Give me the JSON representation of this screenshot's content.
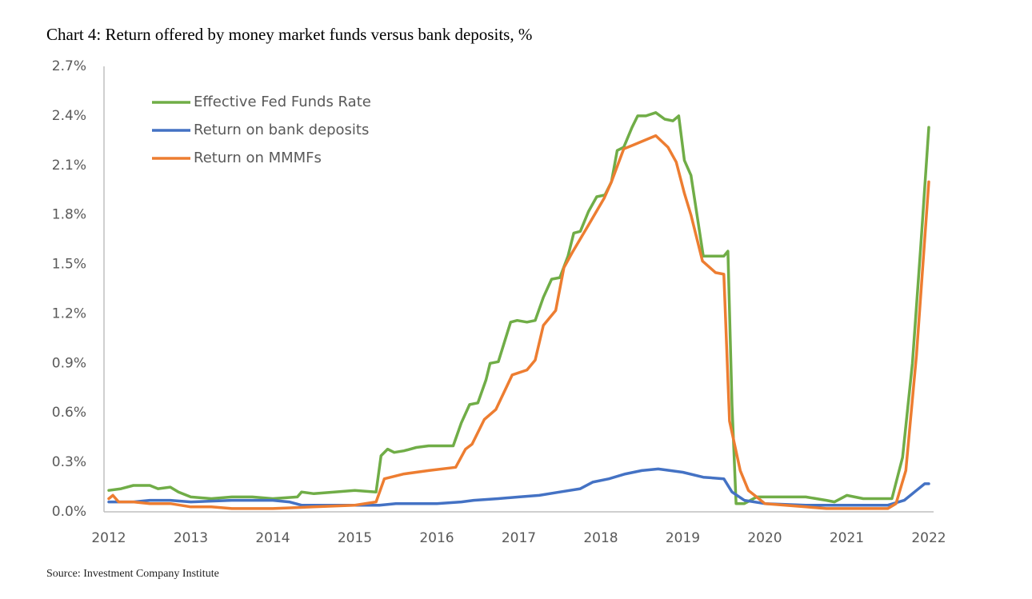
{
  "chart_data": {
    "type": "line",
    "title": "Chart 4: Return offered by money market funds versus bank deposits, %",
    "source": "Source: Investment Company Institute",
    "xlim": [
      2012,
      2022
    ],
    "xticks": [
      2012,
      2013,
      2014,
      2015,
      2016,
      2017,
      2018,
      2019,
      2020,
      2021,
      2022
    ],
    "ylim": [
      0,
      2.7
    ],
    "yticks": [
      {
        "value": 0,
        "label": "0.0%"
      },
      {
        "value": 0.3,
        "label": "0.3%"
      },
      {
        "value": 0.6,
        "label": "0.6%"
      },
      {
        "value": 0.9,
        "label": "0.9%"
      },
      {
        "value": 1.2,
        "label": "1.2%"
      },
      {
        "value": 1.5,
        "label": "1.5%"
      },
      {
        "value": 1.8,
        "label": "1.8%"
      },
      {
        "value": 2.1,
        "label": "2.1%"
      },
      {
        "value": 2.4,
        "label": "2.4%"
      },
      {
        "value": 2.7,
        "label": "2.7%"
      }
    ],
    "grid": false,
    "legend": "top-left",
    "series": [
      {
        "name": "Effective Fed Funds Rate",
        "color": "#70ad47",
        "x": [
          2012.0,
          2012.15,
          2012.3,
          2012.5,
          2012.6,
          2012.75,
          2012.85,
          2013.0,
          2013.25,
          2013.5,
          2013.75,
          2014.0,
          2014.3,
          2014.35,
          2014.5,
          2014.75,
          2015.0,
          2015.26,
          2015.32,
          2015.4,
          2015.48,
          2015.6,
          2015.75,
          2015.9,
          2016.2,
          2016.3,
          2016.4,
          2016.5,
          2016.6,
          2016.65,
          2016.75,
          2016.9,
          2016.98,
          2017.1,
          2017.2,
          2017.3,
          2017.4,
          2017.5,
          2017.6,
          2017.67,
          2017.75,
          2017.85,
          2017.95,
          2018.05,
          2018.13,
          2018.2,
          2018.28,
          2018.38,
          2018.45,
          2018.55,
          2018.67,
          2018.78,
          2018.88,
          2018.95,
          2019.02,
          2019.1,
          2019.25,
          2019.5,
          2019.55,
          2019.6,
          2019.65,
          2019.75,
          2019.9,
          2020.1,
          2020.5,
          2020.75,
          2020.85,
          2021.0,
          2021.2,
          2021.55,
          2021.68,
          2021.8,
          2021.9,
          2022.0
        ],
        "values": [
          0.13,
          0.14,
          0.16,
          0.16,
          0.14,
          0.15,
          0.12,
          0.09,
          0.08,
          0.09,
          0.09,
          0.08,
          0.09,
          0.12,
          0.11,
          0.12,
          0.13,
          0.12,
          0.34,
          0.38,
          0.36,
          0.37,
          0.39,
          0.4,
          0.4,
          0.54,
          0.65,
          0.66,
          0.8,
          0.9,
          0.91,
          1.15,
          1.16,
          1.15,
          1.16,
          1.3,
          1.41,
          1.42,
          1.55,
          1.69,
          1.7,
          1.82,
          1.91,
          1.92,
          2.0,
          2.19,
          2.21,
          2.33,
          2.4,
          2.4,
          2.42,
          2.38,
          2.37,
          2.4,
          2.13,
          2.04,
          1.55,
          1.55,
          1.58,
          0.65,
          0.05,
          0.05,
          0.09,
          0.09,
          0.09,
          0.07,
          0.06,
          0.1,
          0.08,
          0.08,
          0.33,
          0.9,
          1.6,
          2.33
        ]
      },
      {
        "name": "Return on bank deposits",
        "color": "#4472c4",
        "x": [
          2012.0,
          2012.3,
          2012.5,
          2012.75,
          2013.0,
          2013.5,
          2014.0,
          2014.2,
          2014.35,
          2014.6,
          2015.0,
          2015.3,
          2015.5,
          2015.75,
          2016.0,
          2016.3,
          2016.45,
          2016.75,
          2017.0,
          2017.25,
          2017.5,
          2017.75,
          2017.9,
          2018.1,
          2018.3,
          2018.5,
          2018.7,
          2019.0,
          2019.25,
          2019.5,
          2019.6,
          2019.75,
          2020.0,
          2020.5,
          2021.0,
          2021.5,
          2021.7,
          2021.85,
          2021.95,
          2022.0
        ],
        "values": [
          0.06,
          0.06,
          0.07,
          0.07,
          0.06,
          0.07,
          0.07,
          0.06,
          0.04,
          0.04,
          0.04,
          0.04,
          0.05,
          0.05,
          0.05,
          0.06,
          0.07,
          0.08,
          0.09,
          0.1,
          0.12,
          0.14,
          0.18,
          0.2,
          0.23,
          0.25,
          0.26,
          0.24,
          0.21,
          0.2,
          0.12,
          0.07,
          0.05,
          0.04,
          0.04,
          0.04,
          0.07,
          0.13,
          0.17,
          0.17
        ]
      },
      {
        "name": "Return on MMMFs",
        "color": "#ed7d31",
        "x": [
          2012.0,
          2012.05,
          2012.12,
          2012.3,
          2012.5,
          2012.75,
          2013.0,
          2013.25,
          2013.5,
          2014.0,
          2014.5,
          2015.0,
          2015.26,
          2015.36,
          2015.6,
          2015.9,
          2016.23,
          2016.35,
          2016.43,
          2016.58,
          2016.72,
          2016.92,
          2017.1,
          2017.2,
          2017.3,
          2017.45,
          2017.55,
          2017.65,
          2017.84,
          2018.04,
          2018.13,
          2018.28,
          2018.38,
          2018.67,
          2018.82,
          2018.92,
          2019.02,
          2019.1,
          2019.24,
          2019.4,
          2019.5,
          2019.57,
          2019.7,
          2019.8,
          2019.9,
          2020.0,
          2020.5,
          2020.75,
          2021.0,
          2021.5,
          2021.6,
          2021.72,
          2021.85,
          2022.0
        ],
        "values": [
          0.08,
          0.1,
          0.06,
          0.06,
          0.05,
          0.05,
          0.03,
          0.03,
          0.02,
          0.02,
          0.03,
          0.04,
          0.06,
          0.2,
          0.23,
          0.25,
          0.27,
          0.38,
          0.41,
          0.56,
          0.62,
          0.83,
          0.86,
          0.92,
          1.13,
          1.22,
          1.48,
          1.57,
          1.73,
          1.9,
          2.0,
          2.2,
          2.22,
          2.28,
          2.21,
          2.12,
          1.93,
          1.8,
          1.52,
          1.45,
          1.44,
          0.55,
          0.25,
          0.13,
          0.09,
          0.05,
          0.03,
          0.02,
          0.02,
          0.02,
          0.05,
          0.25,
          0.95,
          2.0
        ]
      }
    ]
  }
}
